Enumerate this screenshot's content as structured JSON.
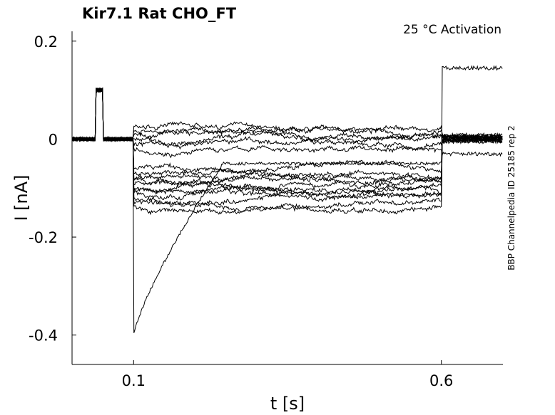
{
  "chart_data": {
    "type": "line",
    "title": "Kir7.1  Rat  CHO_FT",
    "subtitle": "25 °C  Activation",
    "side_label": "BBP Channelpedia ID 25185 rep 2",
    "xlabel": "t [s]",
    "ylabel": "I [nA]",
    "xlim": [
      0.0,
      0.7
    ],
    "ylim": [
      -0.46,
      0.22
    ],
    "xticks": [
      0.1,
      0.6
    ],
    "xtick_labels": [
      "0.1",
      "0.6"
    ],
    "yticks": [
      0.2,
      0,
      -0.2,
      -0.4
    ],
    "ytick_labels": [
      "0.2",
      "0",
      "-0.2",
      "-0.4"
    ],
    "grid": false,
    "line_color": "#000000",
    "pulse": {
      "t_prepulse_on": 0.038,
      "t_prepulse_off": 0.05,
      "prepulse_level": 0.1,
      "t_on": 0.1,
      "t_off": 0.6
    },
    "series": [
      {
        "during": 0.025,
        "after": 0.005
      },
      {
        "during": 0.015,
        "after": 0.0
      },
      {
        "during": 0.01,
        "after": 0.008
      },
      {
        "during": 0.0,
        "after": -0.005
      },
      {
        "during": -0.01,
        "after": 0.003
      },
      {
        "during": -0.02,
        "after": -0.03
      },
      {
        "during": -0.06,
        "after": 0.0
      },
      {
        "during": -0.07,
        "after": 0.004
      },
      {
        "during": -0.08,
        "after": -0.002
      },
      {
        "during": -0.085,
        "after": 0.006
      },
      {
        "during": -0.09,
        "after": 0.0
      },
      {
        "during": -0.1,
        "after": 0.003
      },
      {
        "during": -0.105,
        "after": -0.004
      },
      {
        "during": -0.11,
        "after": 0.145
      },
      {
        "during": -0.12,
        "after": 0.002
      },
      {
        "during": -0.13,
        "after": 0.005
      },
      {
        "during": -0.14,
        "after": -0.003
      },
      {
        "during_decay_from": -0.4,
        "during_decay_to": -0.05,
        "after": 0.0
      }
    ]
  }
}
